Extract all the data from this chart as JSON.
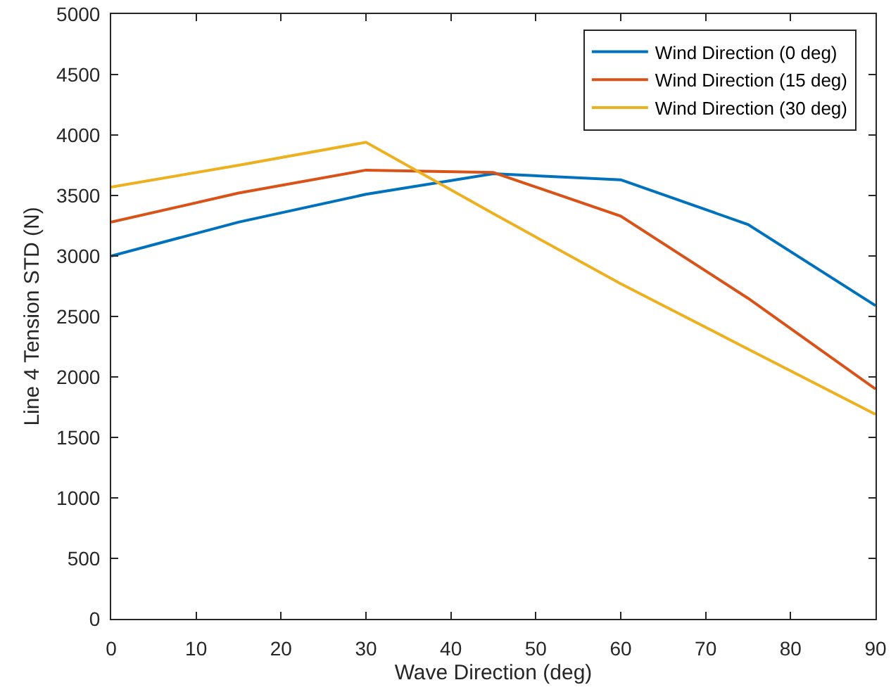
{
  "chart_data": {
    "type": "line",
    "xlabel": "Wave Direction (deg)",
    "ylabel": "Line 4 Tension STD (N)",
    "x": [
      0,
      15,
      30,
      45,
      60,
      75,
      90
    ],
    "series": [
      {
        "name": "Wind Direction (0 deg)",
        "color": "#0072bd",
        "values": [
          3000,
          3280,
          3510,
          3680,
          3630,
          3260,
          2590
        ]
      },
      {
        "name": "Wind Direction (15 deg)",
        "color": "#d95319",
        "values": [
          3280,
          3520,
          3710,
          3690,
          3330,
          2650,
          1900
        ]
      },
      {
        "name": "Wind Direction (30 deg)",
        "color": "#edb120",
        "values": [
          3570,
          3750,
          3940,
          3350,
          2770,
          2230,
          1690
        ]
      }
    ],
    "xlim": [
      0,
      90
    ],
    "xticks": [
      0,
      10,
      20,
      30,
      40,
      50,
      60,
      70,
      80,
      90
    ],
    "ylim": [
      0,
      5000
    ],
    "yticks": [
      0,
      500,
      1000,
      1500,
      2000,
      2500,
      3000,
      3500,
      4000,
      4500,
      5000
    ],
    "grid": false,
    "legend": "top right",
    "marker": "none",
    "line_style": "solid"
  }
}
